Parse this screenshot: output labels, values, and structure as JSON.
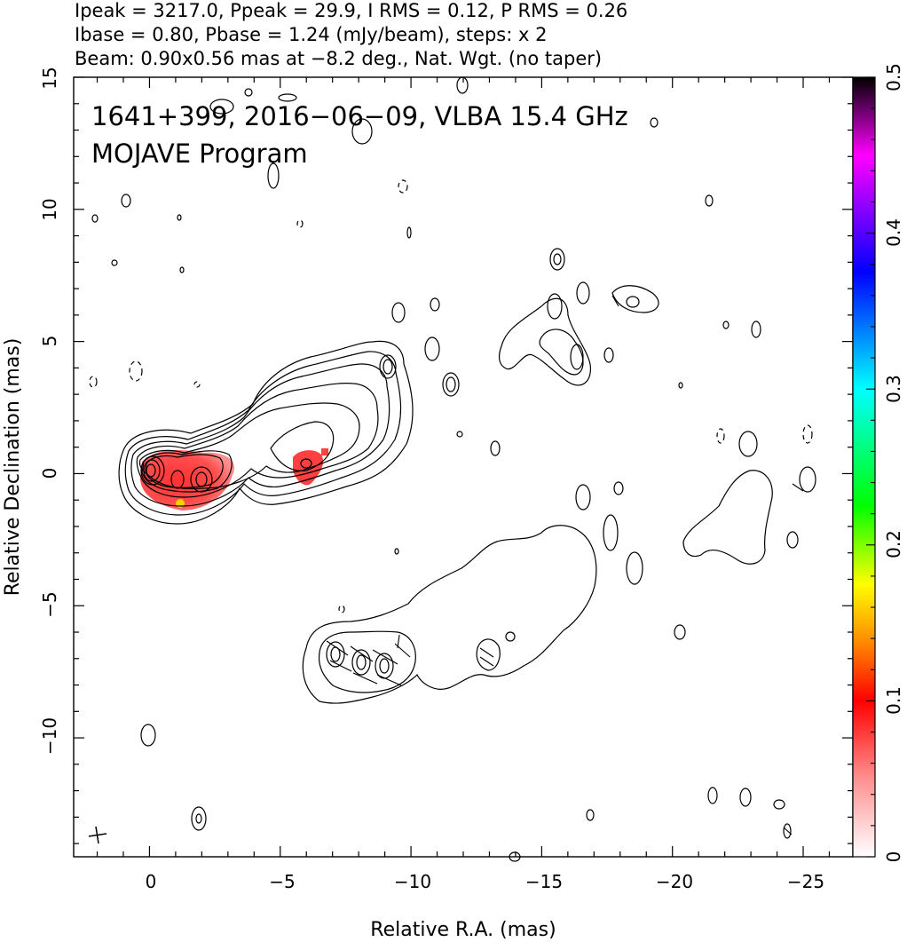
{
  "header": {
    "line1": "Ipeak = 3217.0, Ppeak = 29.9, I RMS = 0.12, P RMS = 0.26",
    "line2": "Ibase = 0.80, Pbase = 1.24 (mJy/beam), steps: x 2",
    "line3": "Beam: 0.90x0.56 mas at −8.2 deg., Nat. Wgt. (no taper)"
  },
  "chart_data": {
    "type": "contour",
    "title": "1641+399, 2016−06−09, VLBA 15.4 GHz",
    "subtitle": "MOJAVE Program",
    "xlabel": "Relative R.A. (mas)",
    "ylabel": "Relative Declination (mas)",
    "xlim": [
      2.9,
      -26.9
    ],
    "ylim": [
      -14.5,
      15
    ],
    "xticks": [
      0,
      -5,
      -10,
      -15,
      -20,
      -25
    ],
    "xtick_labels": [
      "0",
      "−5",
      "−10",
      "−15",
      "−20",
      "−25"
    ],
    "yticks": [
      -10,
      -5,
      0,
      5,
      10,
      15
    ],
    "ytick_labels": [
      "−10",
      "−5",
      "0",
      "5",
      "10",
      "15"
    ],
    "colorbar": {
      "range": [
        0,
        0.5
      ],
      "ticks": [
        0,
        0.1,
        0.2,
        0.3,
        0.4,
        0.5
      ],
      "tick_labels": [
        "0",
        "0.1",
        "0.2",
        "0.3",
        "0.4",
        "0.5"
      ],
      "colormap": [
        "#ffffff",
        "#ff0000",
        "#ff8000",
        "#ffff00",
        "#00ff00",
        "#00ffff",
        "#0000ff",
        "#ff00ff",
        "#000000"
      ]
    },
    "core_position": [
      0,
      0
    ],
    "components": [
      {
        "ra": 0.0,
        "dec": 0.0
      },
      {
        "ra": -2.0,
        "dec": -0.4
      },
      {
        "ra": -5.9,
        "dec": 0.2
      },
      {
        "ra": -7.0,
        "dec": -7.0
      },
      {
        "ra": -8.2,
        "dec": -7.3
      },
      {
        "ra": -9.1,
        "dec": -7.4
      }
    ]
  }
}
